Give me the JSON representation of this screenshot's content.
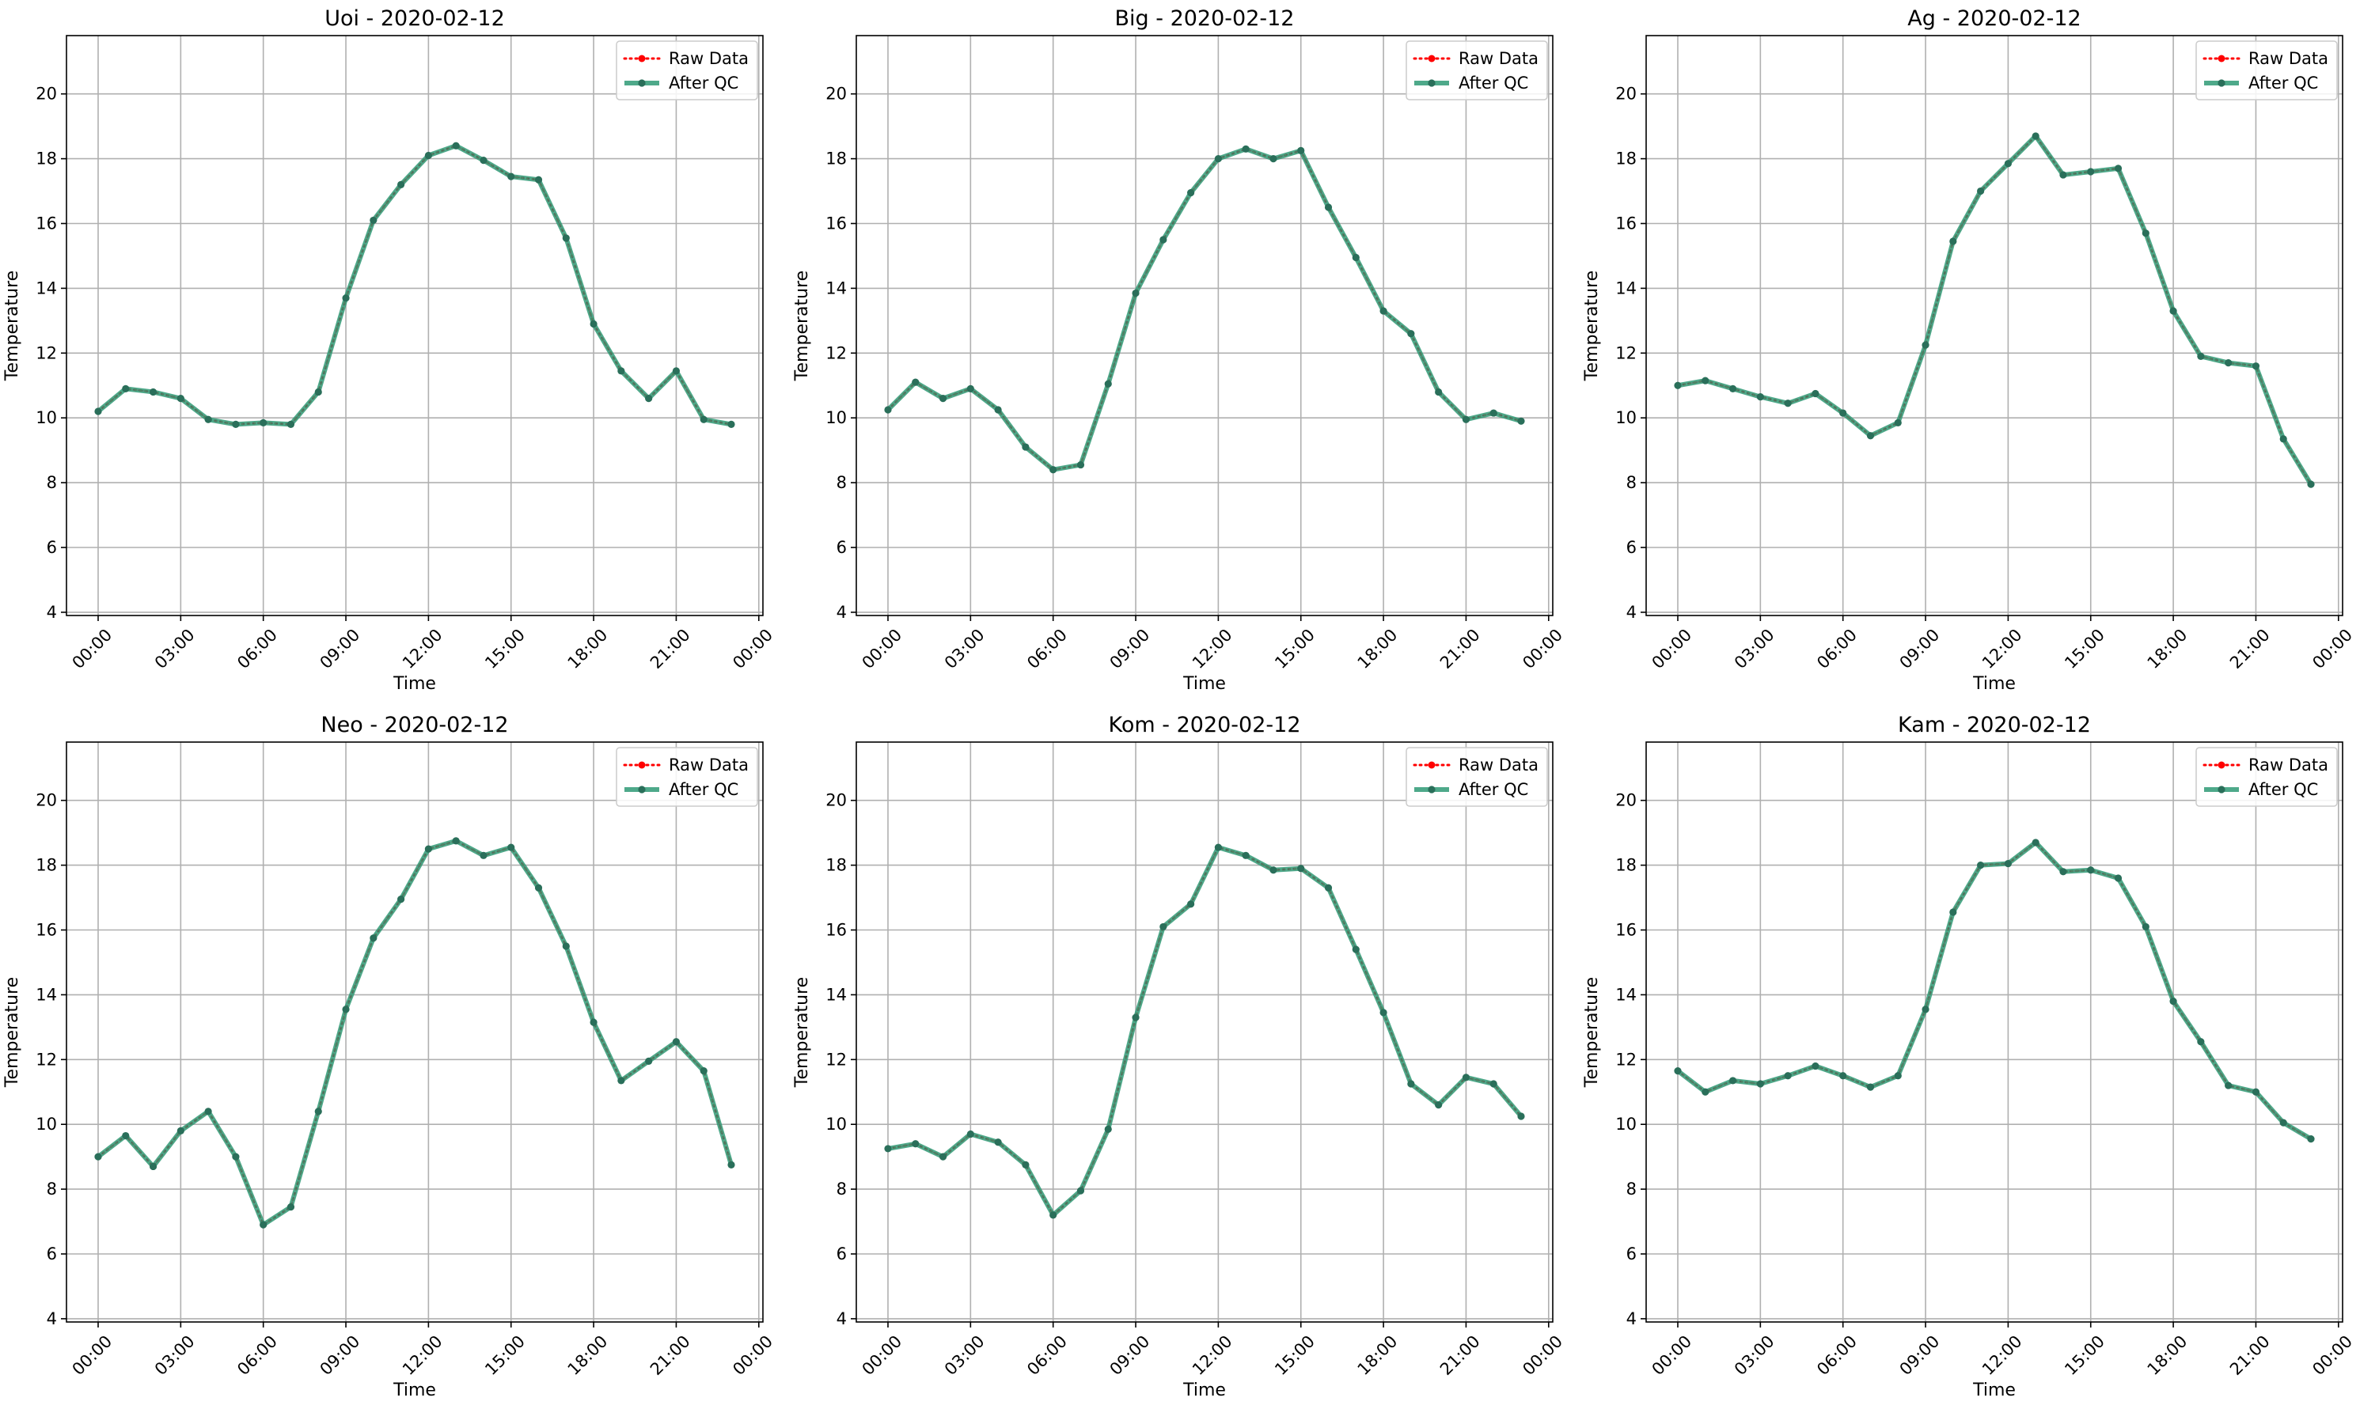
{
  "colors": {
    "raw": "#ff0000",
    "qc": "#2f9a76",
    "qc_marker": "#2a6f5a",
    "grid": "#b0b0b0",
    "axes": "#000000"
  },
  "chart_data": [
    {
      "type": "line",
      "title": "Uoi - 2020-02-12",
      "xlabel": "Time",
      "ylabel": "Temperature",
      "xlim": [
        -1.15,
        24.15
      ],
      "ylim": [
        3.9,
        21.8
      ],
      "xticks": [
        0,
        3,
        6,
        9,
        12,
        15,
        18,
        21,
        24
      ],
      "xtick_labels": [
        "00:00",
        "03:00",
        "06:00",
        "09:00",
        "12:00",
        "15:00",
        "18:00",
        "21:00",
        "00:00"
      ],
      "yticks": [
        4,
        6,
        8,
        10,
        12,
        14,
        16,
        18,
        20
      ],
      "grid": true,
      "legend_position": "top-right",
      "x": [
        0,
        1,
        2,
        3,
        4,
        5,
        6,
        7,
        8,
        9,
        10,
        11,
        12,
        13,
        14,
        15,
        16,
        17,
        18,
        19,
        20,
        21,
        22,
        23
      ],
      "series": [
        {
          "name": "Raw Data",
          "style": "dotted-red",
          "values": [
            10.2,
            10.9,
            10.8,
            10.6,
            9.95,
            9.8,
            9.85,
            9.8,
            10.8,
            13.7,
            16.1,
            17.2,
            18.1,
            18.4,
            17.95,
            17.45,
            17.35,
            15.55,
            12.9,
            11.45,
            10.6,
            11.45,
            9.95,
            9.8
          ]
        },
        {
          "name": "After QC",
          "style": "solid-green",
          "values": [
            10.2,
            10.9,
            10.8,
            10.6,
            9.95,
            9.8,
            9.85,
            9.8,
            10.8,
            13.7,
            16.1,
            17.2,
            18.1,
            18.4,
            17.95,
            17.45,
            17.35,
            15.55,
            12.9,
            11.45,
            10.6,
            11.45,
            9.95,
            9.8
          ]
        }
      ]
    },
    {
      "type": "line",
      "title": "Big - 2020-02-12",
      "xlabel": "Time",
      "ylabel": "Temperature",
      "xlim": [
        -1.15,
        24.15
      ],
      "ylim": [
        3.9,
        21.8
      ],
      "xticks": [
        0,
        3,
        6,
        9,
        12,
        15,
        18,
        21,
        24
      ],
      "xtick_labels": [
        "00:00",
        "03:00",
        "06:00",
        "09:00",
        "12:00",
        "15:00",
        "18:00",
        "21:00",
        "00:00"
      ],
      "yticks": [
        4,
        6,
        8,
        10,
        12,
        14,
        16,
        18,
        20
      ],
      "grid": true,
      "legend_position": "top-right",
      "x": [
        0,
        1,
        2,
        3,
        4,
        5,
        6,
        7,
        8,
        9,
        10,
        11,
        12,
        13,
        14,
        15,
        16,
        17,
        18,
        19,
        20,
        21,
        22,
        23
      ],
      "series": [
        {
          "name": "Raw Data",
          "style": "dotted-red",
          "values": [
            10.25,
            11.1,
            10.6,
            10.9,
            10.25,
            9.1,
            8.4,
            8.55,
            11.05,
            13.85,
            15.5,
            16.95,
            18.0,
            18.3,
            18.0,
            18.25,
            16.5,
            14.95,
            13.3,
            12.6,
            10.8,
            9.95,
            10.15,
            9.9
          ]
        },
        {
          "name": "After QC",
          "style": "solid-green",
          "values": [
            10.25,
            11.1,
            10.6,
            10.9,
            10.25,
            9.1,
            8.4,
            8.55,
            11.05,
            13.85,
            15.5,
            16.95,
            18.0,
            18.3,
            18.0,
            18.25,
            16.5,
            14.95,
            13.3,
            12.6,
            10.8,
            9.95,
            10.15,
            9.9
          ]
        }
      ]
    },
    {
      "type": "line",
      "title": "Ag - 2020-02-12",
      "xlabel": "Time",
      "ylabel": "Temperature",
      "xlim": [
        -1.15,
        24.15
      ],
      "ylim": [
        3.9,
        21.8
      ],
      "xticks": [
        0,
        3,
        6,
        9,
        12,
        15,
        18,
        21,
        24
      ],
      "xtick_labels": [
        "00:00",
        "03:00",
        "06:00",
        "09:00",
        "12:00",
        "15:00",
        "18:00",
        "21:00",
        "00:00"
      ],
      "yticks": [
        4,
        6,
        8,
        10,
        12,
        14,
        16,
        18,
        20
      ],
      "grid": true,
      "legend_position": "top-right",
      "x": [
        0,
        1,
        2,
        3,
        4,
        5,
        6,
        7,
        8,
        9,
        10,
        11,
        12,
        13,
        14,
        15,
        16,
        17,
        18,
        19,
        20,
        21,
        22,
        23
      ],
      "series": [
        {
          "name": "Raw Data",
          "style": "dotted-red",
          "values": [
            11.0,
            11.15,
            10.9,
            10.65,
            10.45,
            10.75,
            10.15,
            9.45,
            9.85,
            12.25,
            15.45,
            17.0,
            17.85,
            18.7,
            17.5,
            17.6,
            17.7,
            15.7,
            13.3,
            11.9,
            11.7,
            11.6,
            9.35,
            7.95
          ]
        },
        {
          "name": "After QC",
          "style": "solid-green",
          "values": [
            11.0,
            11.15,
            10.9,
            10.65,
            10.45,
            10.75,
            10.15,
            9.45,
            9.85,
            12.25,
            15.45,
            17.0,
            17.85,
            18.7,
            17.5,
            17.6,
            17.7,
            15.7,
            13.3,
            11.9,
            11.7,
            11.6,
            9.35,
            7.95
          ]
        }
      ]
    },
    {
      "type": "line",
      "title": "Neo - 2020-02-12",
      "xlabel": "Time",
      "ylabel": "Temperature",
      "xlim": [
        -1.15,
        24.15
      ],
      "ylim": [
        3.9,
        21.8
      ],
      "xticks": [
        0,
        3,
        6,
        9,
        12,
        15,
        18,
        21,
        24
      ],
      "xtick_labels": [
        "00:00",
        "03:00",
        "06:00",
        "09:00",
        "12:00",
        "15:00",
        "18:00",
        "21:00",
        "00:00"
      ],
      "yticks": [
        4,
        6,
        8,
        10,
        12,
        14,
        16,
        18,
        20
      ],
      "grid": true,
      "legend_position": "top-right",
      "x": [
        0,
        1,
        2,
        3,
        4,
        5,
        6,
        7,
        8,
        9,
        10,
        11,
        12,
        13,
        14,
        15,
        16,
        17,
        18,
        19,
        20,
        21,
        22,
        23
      ],
      "series": [
        {
          "name": "Raw Data",
          "style": "dotted-red",
          "values": [
            9.0,
            9.65,
            8.7,
            9.8,
            10.4,
            9.0,
            6.9,
            7.45,
            10.4,
            13.55,
            15.75,
            16.95,
            18.5,
            18.75,
            18.3,
            18.55,
            17.3,
            15.5,
            13.15,
            11.35,
            11.95,
            12.55,
            11.65,
            8.75
          ]
        },
        {
          "name": "After QC",
          "style": "solid-green",
          "values": [
            9.0,
            9.65,
            8.7,
            9.8,
            10.4,
            9.0,
            6.9,
            7.45,
            10.4,
            13.55,
            15.75,
            16.95,
            18.5,
            18.75,
            18.3,
            18.55,
            17.3,
            15.5,
            13.15,
            11.35,
            11.95,
            12.55,
            11.65,
            8.75
          ]
        }
      ]
    },
    {
      "type": "line",
      "title": "Kom - 2020-02-12",
      "xlabel": "Time",
      "ylabel": "Temperature",
      "xlim": [
        -1.15,
        24.15
      ],
      "ylim": [
        3.9,
        21.8
      ],
      "xticks": [
        0,
        3,
        6,
        9,
        12,
        15,
        18,
        21,
        24
      ],
      "xtick_labels": [
        "00:00",
        "03:00",
        "06:00",
        "09:00",
        "12:00",
        "15:00",
        "18:00",
        "21:00",
        "00:00"
      ],
      "yticks": [
        4,
        6,
        8,
        10,
        12,
        14,
        16,
        18,
        20
      ],
      "grid": true,
      "legend_position": "top-right",
      "x": [
        0,
        1,
        2,
        3,
        4,
        5,
        6,
        7,
        8,
        9,
        10,
        11,
        12,
        13,
        14,
        15,
        16,
        17,
        18,
        19,
        20,
        21,
        22,
        23
      ],
      "series": [
        {
          "name": "Raw Data",
          "style": "dotted-red",
          "values": [
            9.25,
            9.4,
            9.0,
            9.7,
            9.45,
            8.75,
            7.2,
            7.95,
            9.85,
            13.3,
            16.1,
            16.8,
            18.55,
            18.3,
            17.85,
            17.9,
            17.3,
            15.4,
            13.45,
            11.25,
            10.6,
            11.45,
            11.25,
            10.25
          ]
        },
        {
          "name": "After QC",
          "style": "solid-green",
          "values": [
            9.25,
            9.4,
            9.0,
            9.7,
            9.45,
            8.75,
            7.2,
            7.95,
            9.85,
            13.3,
            16.1,
            16.8,
            18.55,
            18.3,
            17.85,
            17.9,
            17.3,
            15.4,
            13.45,
            11.25,
            10.6,
            11.45,
            11.25,
            10.25
          ]
        }
      ]
    },
    {
      "type": "line",
      "title": "Kam - 2020-02-12",
      "xlabel": "Time",
      "ylabel": "Temperature",
      "xlim": [
        -1.15,
        24.15
      ],
      "ylim": [
        3.9,
        21.8
      ],
      "xticks": [
        0,
        3,
        6,
        9,
        12,
        15,
        18,
        21,
        24
      ],
      "xtick_labels": [
        "00:00",
        "03:00",
        "06:00",
        "09:00",
        "12:00",
        "15:00",
        "18:00",
        "21:00",
        "00:00"
      ],
      "yticks": [
        4,
        6,
        8,
        10,
        12,
        14,
        16,
        18,
        20
      ],
      "grid": true,
      "legend_position": "top-right",
      "x": [
        0,
        1,
        2,
        3,
        4,
        5,
        6,
        7,
        8,
        9,
        10,
        11,
        12,
        13,
        14,
        15,
        16,
        17,
        18,
        19,
        20,
        21,
        22,
        23
      ],
      "series": [
        {
          "name": "Raw Data",
          "style": "dotted-red",
          "values": [
            11.65,
            11.0,
            11.35,
            11.25,
            11.5,
            11.8,
            11.5,
            11.15,
            11.5,
            13.55,
            16.55,
            18.0,
            18.05,
            18.7,
            17.8,
            17.85,
            17.6,
            16.1,
            13.8,
            12.55,
            11.2,
            11.0,
            10.05,
            9.55
          ]
        },
        {
          "name": "After QC",
          "style": "solid-green",
          "values": [
            11.65,
            11.0,
            11.35,
            11.25,
            11.5,
            11.8,
            11.5,
            11.15,
            11.5,
            13.55,
            16.55,
            18.0,
            18.05,
            18.7,
            17.8,
            17.85,
            17.6,
            16.1,
            13.8,
            12.55,
            11.2,
            11.0,
            10.05,
            9.55
          ]
        }
      ]
    }
  ]
}
